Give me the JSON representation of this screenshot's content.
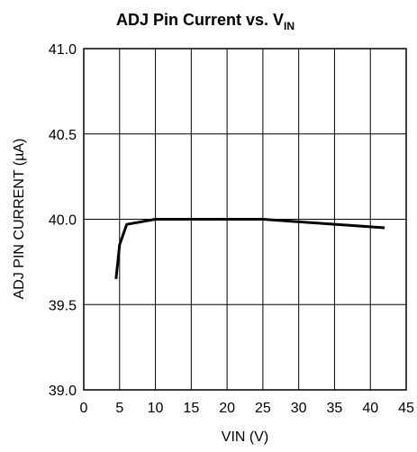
{
  "chart_data": {
    "type": "line",
    "title": "ADJ Pin Current vs. V",
    "title_subscript": "IN",
    "xlabel": "VIN (V)",
    "ylabel": "ADJ PIN CURRENT (µA)",
    "xlim": [
      0,
      45
    ],
    "ylim": [
      39.0,
      41.0
    ],
    "x_ticks": [
      0,
      5,
      10,
      15,
      20,
      25,
      30,
      35,
      40,
      45
    ],
    "x_tick_labels": [
      "0",
      "5",
      "10",
      "15",
      "20",
      "25",
      "30",
      "35",
      "40",
      "45"
    ],
    "y_ticks": [
      39.0,
      39.5,
      40.0,
      40.5,
      41.0
    ],
    "y_tick_labels": [
      "39.0",
      "39.5",
      "40.0",
      "40.5",
      "41.0"
    ],
    "grid": true,
    "line_color": "#000000",
    "series": [
      {
        "x": [
          4.5,
          5.0,
          6.0,
          10.0,
          25.0,
          42.0
        ],
        "y": [
          39.65,
          39.85,
          39.97,
          40.0,
          40.0,
          39.95
        ]
      }
    ]
  }
}
